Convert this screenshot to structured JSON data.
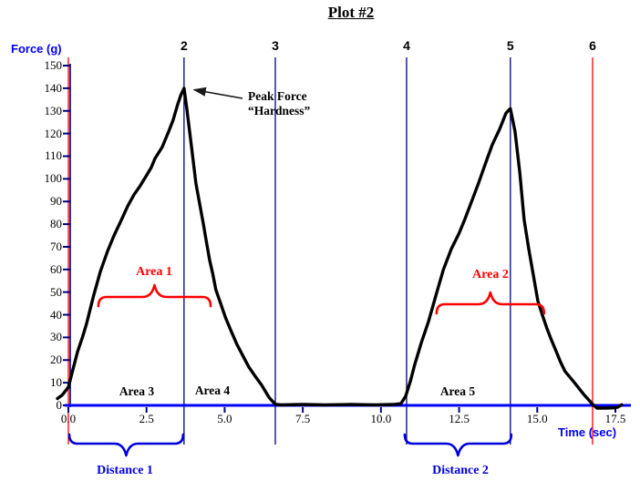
{
  "title": "Plot #2",
  "axis": {
    "y_label": "Force (g)",
    "x_label": "Time (sec)"
  },
  "annotations": {
    "peak_force_line1": "Peak Force",
    "peak_force_line2": "“Hardness”",
    "area1": "Area 1",
    "area2": "Area 2",
    "area3": "Area 3",
    "area4": "Area 4",
    "area5": "Area 5",
    "distance1": "Distance 1",
    "distance2": "Distance 2"
  },
  "colors": {
    "x_axis": "#0000ff",
    "y_axis": "#000080",
    "tick": "#000080",
    "curve": "#000000",
    "red_marker": "#ff0000",
    "navy_marker": "#000080",
    "red_annotation": "#ff0000",
    "blue_annotation": "#0000dd",
    "axis_text": "#0000ff"
  },
  "chart_data": {
    "type": "line",
    "title": "Plot #2",
    "xlabel": "Time (sec)",
    "ylabel": "Force (g)",
    "xlim": [
      0,
      17.5
    ],
    "ylim": [
      0,
      150
    ],
    "grid": false,
    "x_ticks": [
      "0.0",
      "2.5",
      "5.0",
      "7.5",
      "10.0",
      "12.5",
      "15.0",
      "17.5"
    ],
    "y_ticks": [
      0,
      10,
      20,
      30,
      40,
      50,
      60,
      70,
      80,
      90,
      100,
      110,
      120,
      130,
      140,
      150
    ],
    "series": [
      {
        "name": "Force",
        "color": "#000000",
        "points": [
          [
            -0.35,
            3
          ],
          [
            -0.2,
            4.5
          ],
          [
            0,
            8
          ],
          [
            0.15,
            16
          ],
          [
            0.3,
            24
          ],
          [
            0.45,
            30
          ],
          [
            0.58,
            36
          ],
          [
            0.8,
            48
          ],
          [
            1.02,
            59
          ],
          [
            1.25,
            68
          ],
          [
            1.46,
            75
          ],
          [
            1.7,
            82
          ],
          [
            1.9,
            88
          ],
          [
            2.1,
            93
          ],
          [
            2.3,
            97
          ],
          [
            2.48,
            101
          ],
          [
            2.65,
            105
          ],
          [
            2.77,
            109
          ],
          [
            3,
            114
          ],
          [
            3.21,
            121
          ],
          [
            3.35,
            126
          ],
          [
            3.5,
            133
          ],
          [
            3.6,
            137
          ],
          [
            3.7,
            140
          ],
          [
            3.79,
            131
          ],
          [
            3.94,
            114
          ],
          [
            4.08,
            98
          ],
          [
            4.2,
            89
          ],
          [
            4.32,
            80
          ],
          [
            4.42,
            72
          ],
          [
            4.52,
            64
          ],
          [
            4.62,
            58
          ],
          [
            4.72,
            51
          ],
          [
            4.87,
            45
          ],
          [
            5.02,
            39
          ],
          [
            5.2,
            33
          ],
          [
            5.39,
            27
          ],
          [
            5.58,
            22
          ],
          [
            5.77,
            17
          ],
          [
            5.97,
            13
          ],
          [
            6.18,
            9
          ],
          [
            6.42,
            3.5
          ],
          [
            6.62,
            0.5
          ],
          [
            6.8,
            0.2
          ],
          [
            7.5,
            0.4
          ],
          [
            8.2,
            0.2
          ],
          [
            9,
            0.4
          ],
          [
            9.8,
            0.2
          ],
          [
            10.4,
            0.4
          ],
          [
            10.64,
            0.8
          ],
          [
            10.79,
            4
          ],
          [
            10.95,
            11
          ],
          [
            11.08,
            18
          ],
          [
            11.3,
            28
          ],
          [
            11.52,
            37
          ],
          [
            11.81,
            51
          ],
          [
            12,
            60
          ],
          [
            12.25,
            69
          ],
          [
            12.5,
            76
          ],
          [
            12.68,
            82
          ],
          [
            12.9,
            90
          ],
          [
            13.12,
            98
          ],
          [
            13.35,
            107
          ],
          [
            13.56,
            115
          ],
          [
            13.8,
            122
          ],
          [
            14,
            129
          ],
          [
            14.14,
            131
          ],
          [
            14.29,
            121
          ],
          [
            14.44,
            103
          ],
          [
            14.58,
            82
          ],
          [
            14.73,
            69
          ],
          [
            14.87,
            58
          ],
          [
            15.02,
            46
          ],
          [
            15.16,
            40
          ],
          [
            15.31,
            34
          ],
          [
            15.45,
            29
          ],
          [
            15.6,
            24
          ],
          [
            15.75,
            19
          ],
          [
            15.89,
            15
          ],
          [
            16.19,
            10
          ],
          [
            16.48,
            5
          ],
          [
            16.77,
            0.5
          ],
          [
            16.91,
            -1.2
          ],
          [
            17.21,
            -1.2
          ],
          [
            17.45,
            -1.1
          ],
          [
            17.58,
            -0.8
          ],
          [
            17.7,
            0.3
          ]
        ]
      }
    ],
    "peaks": [
      {
        "label": "Peak Force “Hardness”",
        "t": 3.7,
        "force": 140
      },
      {
        "t": 14.14,
        "force": 131
      }
    ],
    "event_markers": [
      {
        "label": "",
        "t": 0,
        "color": "#ff0000"
      },
      {
        "label": "2",
        "t": 3.7,
        "color": "#000080"
      },
      {
        "label": "3",
        "t": 6.62,
        "color": "#000080"
      },
      {
        "label": "4",
        "t": 10.82,
        "color": "#000080"
      },
      {
        "label": "5",
        "t": 14.14,
        "color": "#000080"
      },
      {
        "label": "6",
        "t": 16.77,
        "color": "#ff0000"
      }
    ],
    "braces": [
      {
        "id": "area1",
        "label": "Area 1",
        "t1": 0.96,
        "t2": 4.55,
        "tip": "up",
        "color": "#ff0000"
      },
      {
        "id": "area2",
        "label": "Area 2",
        "t1": 11.78,
        "t2": 15.22,
        "tip": "up",
        "color": "#ff0000"
      },
      {
        "id": "distance1",
        "label": "Distance 1",
        "t1": 0.03,
        "t2": 3.67,
        "tip": "down",
        "color": "#0000dd"
      },
      {
        "id": "distance2",
        "label": "Distance 2",
        "t1": 10.76,
        "t2": 14.17,
        "tip": "down",
        "color": "#0000dd"
      }
    ]
  }
}
